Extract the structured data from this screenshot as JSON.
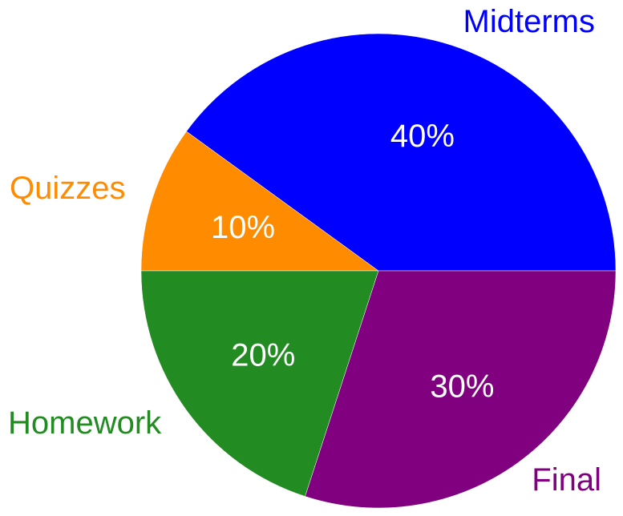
{
  "chart_data": {
    "type": "pie",
    "slices": [
      {
        "name": "Midterms",
        "value": 40,
        "label": "40%",
        "color": "#0000ff"
      },
      {
        "name": "Final",
        "value": 30,
        "label": "30%",
        "color": "#800080"
      },
      {
        "name": "Homework",
        "value": 20,
        "label": "20%",
        "color": "#228b22"
      },
      {
        "name": "Quizzes",
        "value": 10,
        "label": "10%",
        "color": "#ff8c00"
      }
    ],
    "start_angle": "3 o'clock",
    "direction": "counterclockwise-from-quizzes / clockwise-from-midterms",
    "legend": "none"
  }
}
